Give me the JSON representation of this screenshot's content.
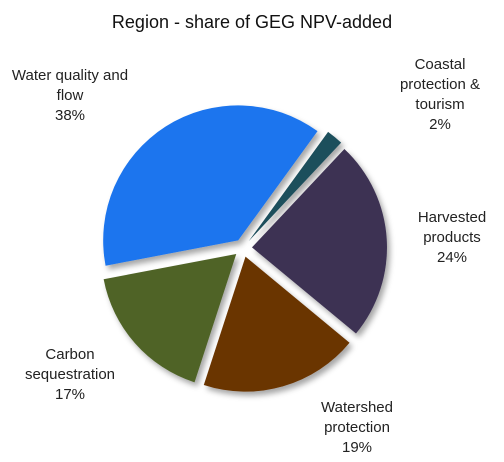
{
  "chart_data": {
    "type": "pie",
    "title": "Region - share of  GEG NPV-added",
    "categories": [
      "Coastal protection & tourism",
      "Harvested products",
      "Watershed protection",
      "Carbon sequestration",
      "Water quality and flow"
    ],
    "values": [
      2,
      24,
      19,
      17,
      38
    ],
    "value_labels": [
      "2%",
      "24%",
      "19%",
      "17%",
      "38%"
    ],
    "colors": [
      "#1e4f5c",
      "#3c3152",
      "#6a3400",
      "#4f6328",
      "#1a74ee"
    ],
    "exploded": true
  }
}
